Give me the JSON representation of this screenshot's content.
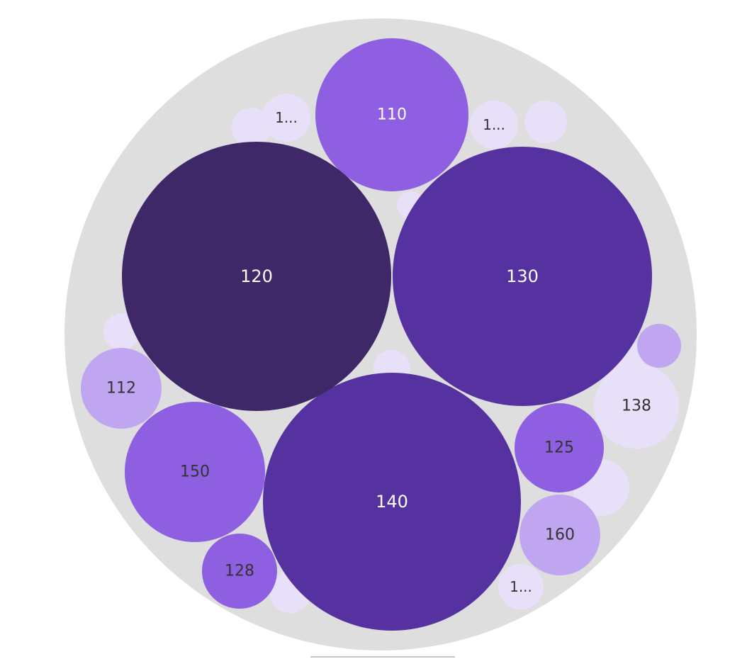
{
  "chart_data": {
    "type": "bubble-pack",
    "title": "",
    "colors": {
      "container": "#dedede",
      "tiny_bubble": "#e8e0f8",
      "light": "#c0a6f0",
      "medium": "#8e5fe0",
      "dark": "#5532a0",
      "darkest": "#3e2868",
      "label_light": "#ffffff",
      "label_dark": "#333333"
    },
    "bubbles": [
      {
        "label": "110",
        "value": 110,
        "shade": "medium"
      },
      {
        "label": "120",
        "value": 120,
        "shade": "darkest"
      },
      {
        "label": "130",
        "value": 130,
        "shade": "dark"
      },
      {
        "label": "140",
        "value": 140,
        "shade": "dark"
      },
      {
        "label": "150",
        "value": 150,
        "shade": "medium"
      },
      {
        "label": "112",
        "value": 112,
        "shade": "light"
      },
      {
        "label": "125",
        "value": 125,
        "shade": "medium"
      },
      {
        "label": "160",
        "value": 160,
        "shade": "light"
      },
      {
        "label": "128",
        "value": 128,
        "shade": "medium"
      },
      {
        "label": "138",
        "value": 138,
        "shade": "tiny"
      },
      {
        "label": "1...",
        "value": null,
        "shade": "tiny"
      },
      {
        "label": "1...",
        "value": null,
        "shade": "tiny"
      },
      {
        "label": "1...",
        "value": null,
        "shade": "tiny"
      },
      {
        "label": "",
        "value": null,
        "shade": "light"
      },
      {
        "label": "",
        "value": null,
        "shade": "tiny"
      },
      {
        "label": "",
        "value": null,
        "shade": "tiny"
      },
      {
        "label": "",
        "value": null,
        "shade": "tiny"
      },
      {
        "label": "",
        "value": null,
        "shade": "tiny"
      },
      {
        "label": "",
        "value": null,
        "shade": "tiny"
      },
      {
        "label": "",
        "value": null,
        "shade": "tiny"
      },
      {
        "label": "",
        "value": null,
        "shade": "tiny"
      },
      {
        "label": "",
        "value": null,
        "shade": "tiny"
      }
    ]
  }
}
